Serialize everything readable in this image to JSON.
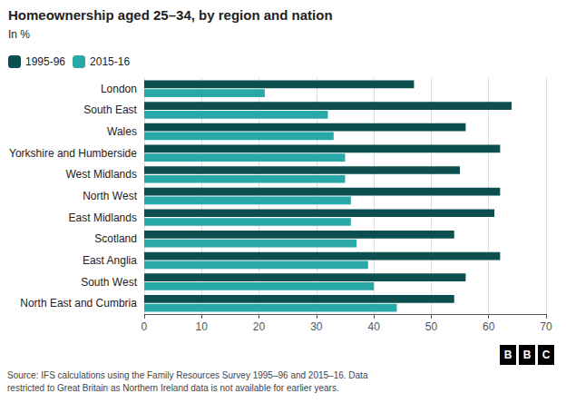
{
  "chart_data": {
    "type": "bar",
    "orientation": "horizontal",
    "title": "Homeownership aged 25–34, by region and nation",
    "subtitle": "In %",
    "categories": [
      "London",
      "South East",
      "Wales",
      "Yorkshire and Humberside",
      "West Midlands",
      "North West",
      "East Midlands",
      "Scotland",
      "East Anglia",
      "South West",
      "North East and Cumbria"
    ],
    "series": [
      {
        "name": "1995-96",
        "color": "#0d4f4f",
        "values": [
          47,
          64,
          56,
          62,
          55,
          62,
          61,
          54,
          62,
          56,
          54
        ]
      },
      {
        "name": "2015-16",
        "color": "#29a8a8",
        "values": [
          21,
          32,
          33,
          35,
          35,
          36,
          36,
          37,
          39,
          40,
          44
        ]
      }
    ],
    "xlim": [
      0,
      70
    ],
    "xticks": [
      0,
      10,
      20,
      30,
      40,
      50,
      60,
      70
    ],
    "grid": true,
    "legend": "upper left",
    "annotations": [
      "Source: IFS calculations using the Family Resources Survey 1995–96 and 2015–16. Data\nrestricted to Great Britain as Northern Ireland data is not available for earlier years.",
      "BBC"
    ]
  }
}
